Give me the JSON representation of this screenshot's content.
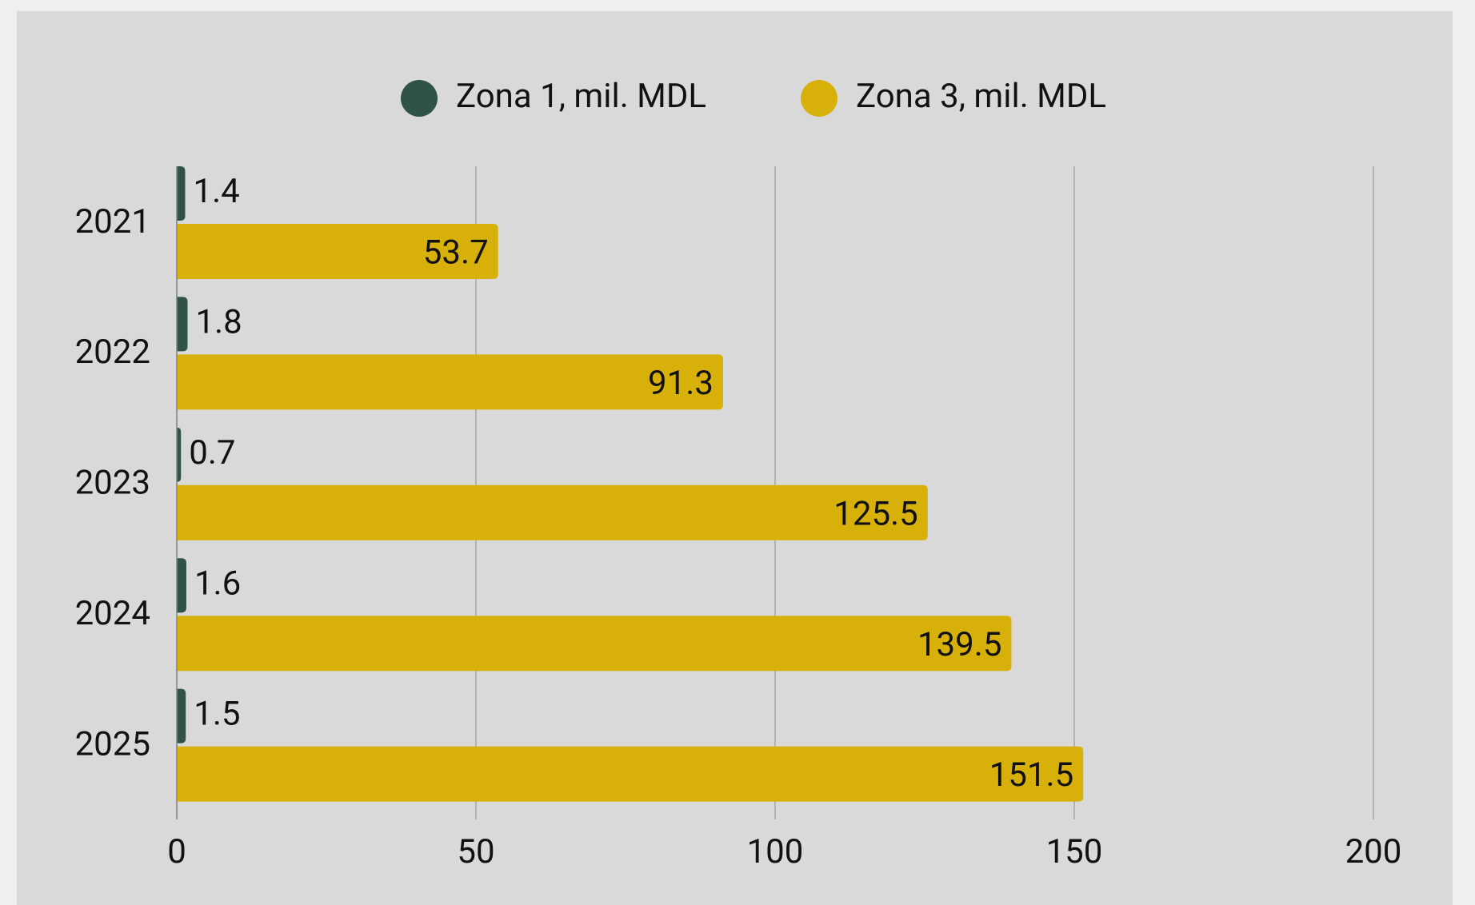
{
  "chart_data": {
    "type": "bar",
    "orientation": "horizontal",
    "categories": [
      "2021",
      "2022",
      "2023",
      "2024",
      "2025"
    ],
    "series": [
      {
        "name": "Zona 1, mil. MDL",
        "color": "#2f5249",
        "values": [
          1.4,
          1.8,
          0.7,
          1.6,
          1.5
        ]
      },
      {
        "name": "Zona 3, mil. MDL",
        "color": "#d8b00a",
        "values": [
          53.7,
          91.3,
          125.5,
          139.5,
          151.5
        ]
      }
    ],
    "xlim": [
      0,
      200
    ],
    "xticks": [
      0,
      50,
      100,
      150,
      200
    ],
    "grid": true,
    "legend": "top"
  }
}
